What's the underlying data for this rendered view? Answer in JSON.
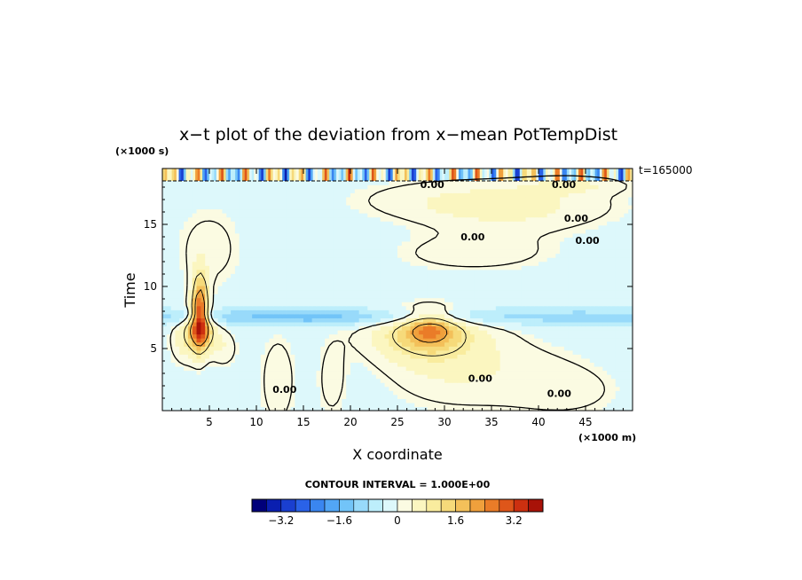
{
  "chart_data": {
    "type": "heatmap",
    "title": "x−t plot of the deviation from x−mean PotTempDist",
    "xlabel": "X coordinate",
    "ylabel": "Time",
    "x_unit": "(×1000 m)",
    "y_unit": "(×1000 s)",
    "time_label": "t=165000",
    "xlim": [
      0,
      50
    ],
    "ylim": [
      0,
      19.5
    ],
    "x_ticks": [
      5,
      10,
      15,
      20,
      25,
      30,
      35,
      40,
      45
    ],
    "x_tick_labels": [
      "5",
      "10",
      "15",
      "20",
      "25",
      "30",
      "35",
      "40",
      "45"
    ],
    "y_ticks": [
      5,
      10,
      15
    ],
    "y_tick_labels": [
      "5",
      "10",
      "15"
    ],
    "contour_interval_text": "CONTOUR INTERVAL = 1.000E+00",
    "contour_labels": [
      {
        "text": "0.00",
        "x": 28.7,
        "y": 18.2
      },
      {
        "text": "0.00",
        "x": 42.7,
        "y": 18.2
      },
      {
        "text": "0.00",
        "x": 44.0,
        "y": 15.5
      },
      {
        "text": "0.00",
        "x": 33.0,
        "y": 14.0
      },
      {
        "text": "0.00",
        "x": 45.2,
        "y": 13.7
      },
      {
        "text": "0.00",
        "x": 13.0,
        "y": 1.7
      },
      {
        "text": "0.00",
        "x": 33.8,
        "y": 2.6
      },
      {
        "text": "0.00",
        "x": 42.2,
        "y": 1.4
      }
    ],
    "features": [
      {
        "x": 25,
        "y": 9.75,
        "sx": 50,
        "sy": 20,
        "v": -0.3
      },
      {
        "x": 25,
        "y": 7.6,
        "sx": 45,
        "sy": 0.5,
        "v": -0.8
      },
      {
        "x": 15,
        "y": 7.6,
        "sx": 5,
        "sy": 0.4,
        "v": -0.4
      },
      {
        "x": 32,
        "y": 17,
        "sx": 10,
        "sy": 1.4,
        "v": 0.55
      },
      {
        "x": 38,
        "y": 16,
        "sx": 8,
        "sy": 1.5,
        "v": 0.45
      },
      {
        "x": 33,
        "y": 12.6,
        "sx": 7,
        "sy": 1.2,
        "v": 0.55
      },
      {
        "x": 44,
        "y": 18.2,
        "sx": 4,
        "sy": 0.5,
        "v": 0.5
      },
      {
        "x": 5,
        "y": 13,
        "sx": 3,
        "sy": 2.8,
        "v": 0.5
      },
      {
        "x": 27.8,
        "y": 6.2,
        "sx": 4.5,
        "sy": 1.5,
        "v": 1.3
      },
      {
        "x": 28.5,
        "y": 6.6,
        "sx": 1.8,
        "sy": 0.9,
        "v": 1.5
      },
      {
        "x": 29,
        "y": 3.5,
        "sx": 5,
        "sy": 2.5,
        "v": 0.5
      },
      {
        "x": 38,
        "y": 3,
        "sx": 6,
        "sy": 2.5,
        "v": 0.45
      },
      {
        "x": 44,
        "y": 1.5,
        "sx": 4,
        "sy": 1.5,
        "v": 0.3
      },
      {
        "x": 12.3,
        "y": 2.5,
        "sx": 1.5,
        "sy": 3,
        "v": 0.6
      },
      {
        "x": 18,
        "y": 2.5,
        "sx": 1.2,
        "sy": 2.5,
        "v": 0.5
      },
      {
        "x": 4,
        "y": 8,
        "sx": 0.6,
        "sy": 2,
        "v": 3.0
      },
      {
        "x": 4,
        "y": 6.5,
        "sx": 1.2,
        "sy": 1.0,
        "v": 1.7
      },
      {
        "x": 2.5,
        "y": 5.5,
        "sx": 1.3,
        "sy": 1.5,
        "v": 0.7
      },
      {
        "x": 6.5,
        "y": 5,
        "sx": 1.2,
        "sy": 1.2,
        "v": 0.6
      }
    ],
    "colorbar": {
      "levels": [
        -4.0,
        -3.6,
        -3.2,
        -2.8,
        -2.4,
        -2.0,
        -1.6,
        -1.2,
        -0.8,
        -0.4,
        0,
        0.4,
        0.8,
        1.2,
        1.6,
        2.0,
        2.4,
        2.8,
        3.2,
        3.6,
        4.0
      ],
      "colors": [
        "#00007a",
        "#0a1fb0",
        "#1a3fd0",
        "#2a62e8",
        "#3a86f0",
        "#52a6f5",
        "#72c4f8",
        "#98dafa",
        "#bdeefb",
        "#ddf8fb",
        "#fbfbe2",
        "#fbf6c0",
        "#f9ec9e",
        "#f6da7a",
        "#f3c05a",
        "#f0a03c",
        "#ea7c28",
        "#de561a",
        "#cc3010",
        "#a81208"
      ],
      "tick_values": [
        -3.2,
        -1.6,
        0,
        1.6,
        3.2
      ],
      "tick_labels": [
        "−3.2",
        "−1.6",
        "0",
        "1.6",
        "3.2"
      ]
    }
  }
}
